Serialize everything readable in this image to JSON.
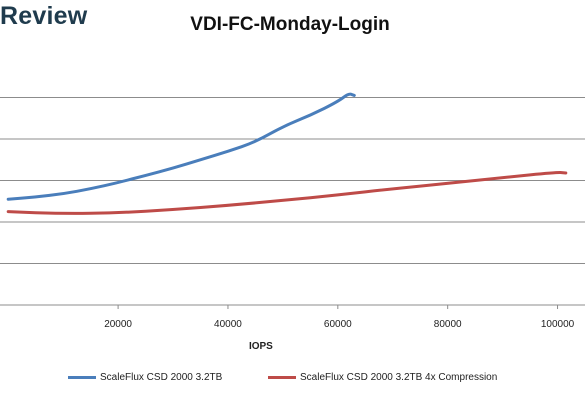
{
  "brand": "Review",
  "chart_data": {
    "type": "line",
    "title": "VDI-FC-Monday-Login",
    "xlabel": "IOPS",
    "ylabel": "",
    "xticks": [
      20000,
      40000,
      60000,
      80000,
      100000
    ],
    "xtick_labels": [
      "20000",
      "40000",
      "60000",
      "80000",
      "100000"
    ],
    "xlim": [
      -1500,
      105000
    ],
    "ylim": [
      0,
      6
    ],
    "grid": true,
    "legend_position": "bottom",
    "series": [
      {
        "name": "ScaleFlux CSD 2000 3.2TB",
        "color": "#4a7ebb",
        "x": [
          0,
          5000,
          10000,
          15000,
          20000,
          25000,
          30000,
          35000,
          40000,
          45000,
          50000,
          55000,
          60000,
          62000,
          63000
        ],
        "y": [
          2.55,
          2.6,
          2.68,
          2.8,
          2.95,
          3.12,
          3.3,
          3.5,
          3.7,
          3.93,
          4.3,
          4.57,
          4.9,
          5.1,
          5.05
        ]
      },
      {
        "name": "ScaleFlux CSD 2000 3.2TB 4x Compression",
        "color": "#be4b48",
        "x": [
          0,
          10000,
          20000,
          30000,
          40000,
          50000,
          60000,
          70000,
          80000,
          90000,
          100000,
          101500
        ],
        "y": [
          2.25,
          2.2,
          2.22,
          2.3,
          2.4,
          2.52,
          2.65,
          2.8,
          2.93,
          3.07,
          3.2,
          3.18
        ]
      }
    ]
  }
}
